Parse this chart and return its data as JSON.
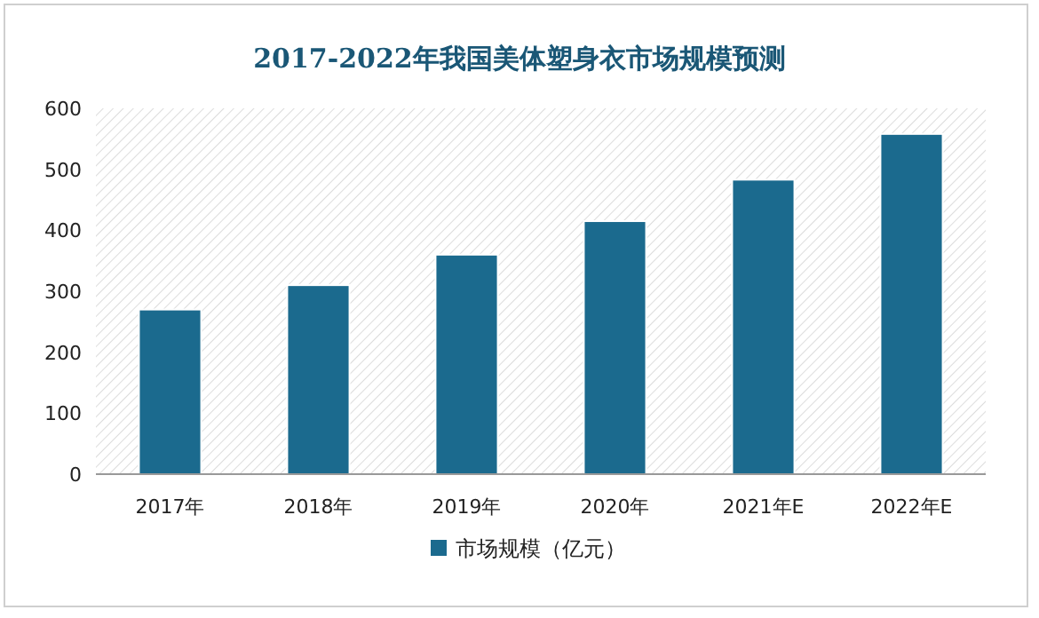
{
  "chart_data": {
    "type": "bar",
    "title": "2017-2022年我国美体塑身衣市场规模预测",
    "categories": [
      "2017年",
      "2018年",
      "2019年",
      "2020年",
      "2021年E",
      "2022年E"
    ],
    "series": [
      {
        "name": "市场规模（亿元）",
        "color": "#1b6a8e",
        "values": [
          270,
          310,
          360,
          415,
          483,
          558
        ]
      }
    ],
    "ylim": [
      0,
      600
    ],
    "yticks": [
      0,
      100,
      200,
      300,
      400,
      500,
      600
    ],
    "grid": false,
    "legend": "bottom"
  }
}
